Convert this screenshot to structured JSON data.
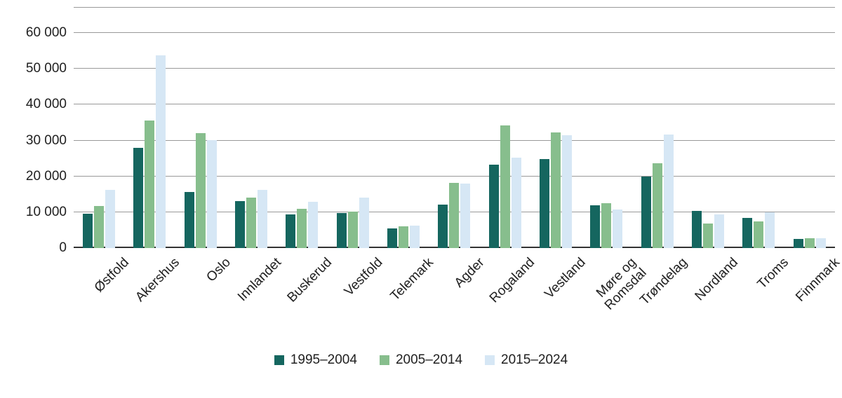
{
  "chart_data": {
    "type": "bar",
    "title": "",
    "xlabel": "",
    "ylabel": "",
    "categories": [
      "Østfold",
      "Akershus",
      "Oslo",
      "Innlandet",
      "Buskerud",
      "Vestfold",
      "Telemark",
      "Agder",
      "Rogaland",
      "Vestland",
      "Møre og\nRomsdal",
      "Trøndelag",
      "Nordland",
      "Troms",
      "Finnmark"
    ],
    "series": [
      {
        "name": "1995–2004",
        "color": "#15665F",
        "values": [
          9500,
          27900,
          15700,
          13200,
          9400,
          9800,
          5400,
          12200,
          23200,
          24900,
          11900,
          19900,
          10300,
          8500,
          2600
        ]
      },
      {
        "name": "2005–2014",
        "color": "#87BE8D",
        "values": [
          11700,
          35600,
          32100,
          14000,
          10900,
          10200,
          6100,
          18100,
          34300,
          32300,
          12600,
          23700,
          6900,
          7500,
          2800
        ]
      },
      {
        "name": "2015–2024",
        "color": "#D6E7F5",
        "values": [
          16300,
          53800,
          30200,
          16300,
          12900,
          14000,
          6300,
          18000,
          25200,
          31400,
          10800,
          31700,
          9300,
          10000,
          2700
        ]
      }
    ],
    "ylim": [
      0,
      60000
    ],
    "ytick_interval": 10000,
    "ytick_labels": [
      "0",
      "10 000",
      "20 000",
      "30 000",
      "40 000",
      "50 000",
      "60 000"
    ],
    "grid": true,
    "gridline_color": "#999999",
    "axis_line_color": "#333333",
    "text_color": "#202020",
    "legend_position": "bottom"
  }
}
